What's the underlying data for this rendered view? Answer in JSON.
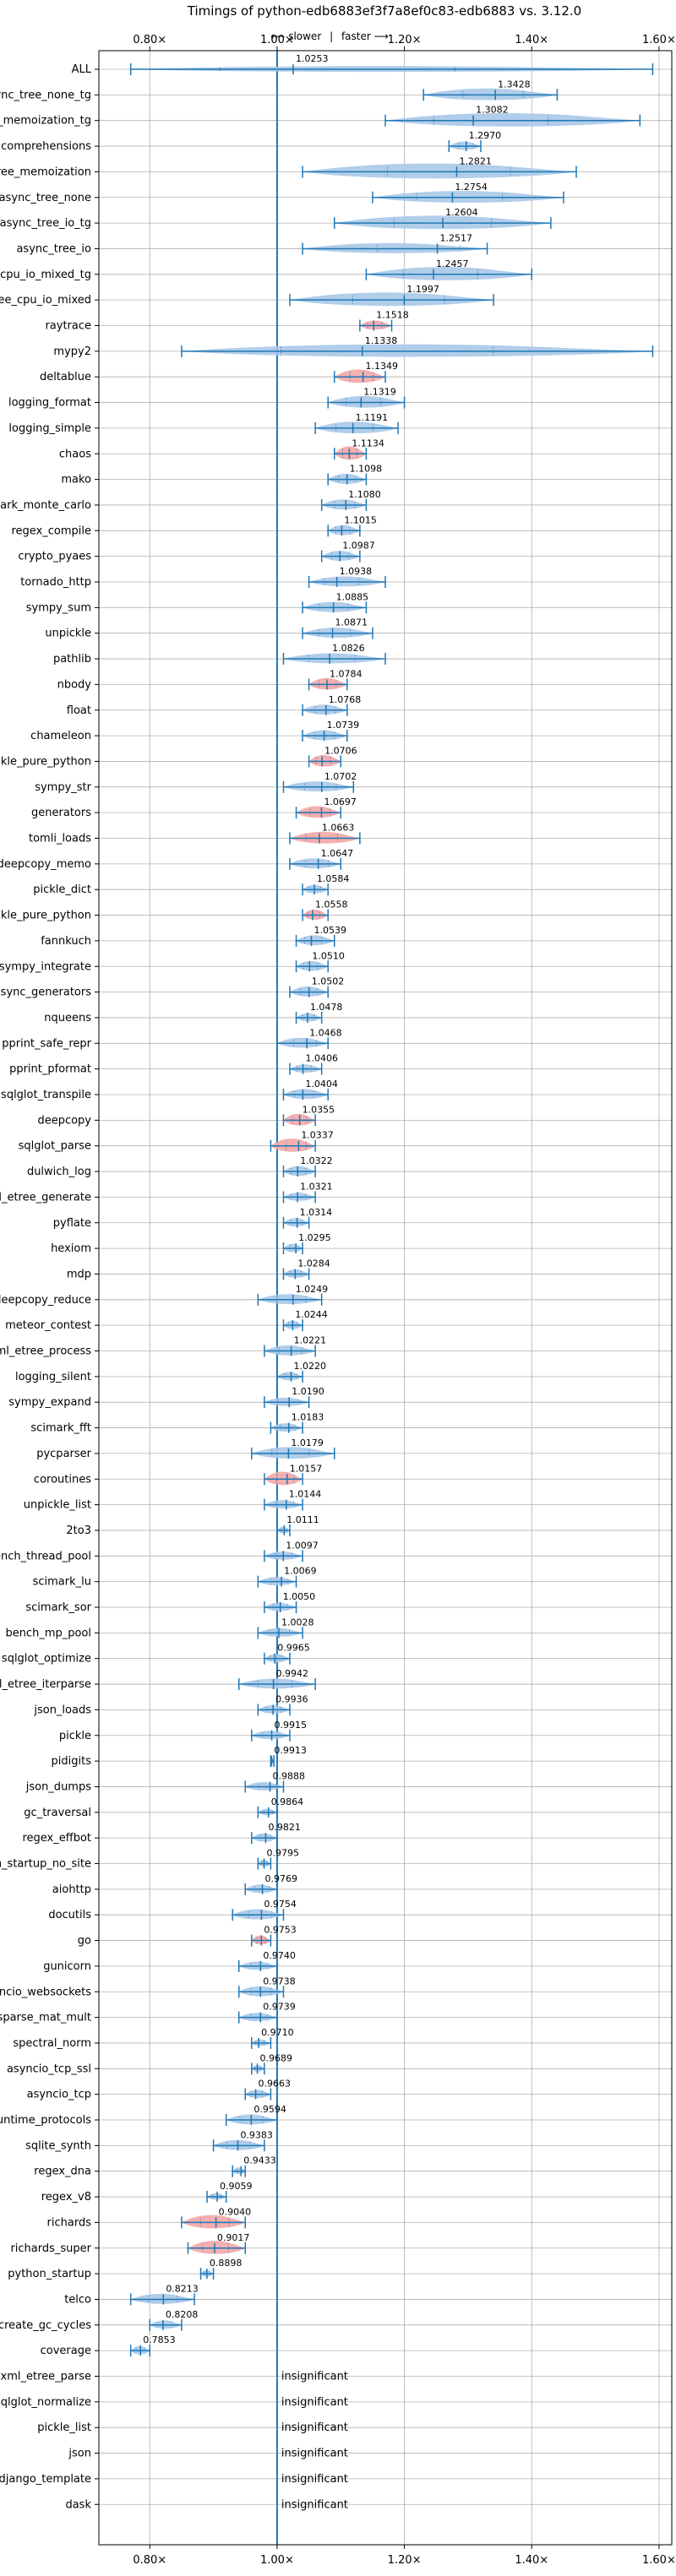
{
  "chart_data": {
    "type": "violin",
    "title": "Timings of python-edb6883ef3f7a8ef0c83-edb6883 vs. 3.12.0",
    "direction_note": {
      "slower": "⟵ slower",
      "separator": "|",
      "faster": "faster ⟶"
    },
    "xlim": [
      0.72,
      1.62
    ],
    "xticks": [
      0.8,
      1.0,
      1.2,
      1.4,
      1.6
    ],
    "xtick_labels": [
      "0.80×",
      "1.00×",
      "1.20×",
      "1.40×",
      "1.60×"
    ],
    "reference_line": 1.0,
    "insignificant_label": "insignificant",
    "colors": {
      "faster": "#a8c8e8",
      "slower": "#f4a6a6",
      "line": "#1f77b4",
      "grid": "#b0b0b0"
    },
    "rows": [
      {
        "name": "ALL",
        "value": 1.0253,
        "lo": 0.77,
        "hi": 1.59,
        "w": 0.35
      },
      {
        "name": "async_tree_none_tg",
        "value": 1.3428,
        "lo": 1.23,
        "hi": 1.44,
        "w": 0.7
      },
      {
        "name": "async_tree_memoization_tg",
        "value": 1.3082,
        "lo": 1.17,
        "hi": 1.57,
        "w": 0.8
      },
      {
        "name": "comprehensions",
        "value": 1.297,
        "lo": 1.27,
        "hi": 1.32,
        "w": 0.5
      },
      {
        "name": "async_tree_memoization",
        "value": 1.2821,
        "lo": 1.04,
        "hi": 1.47,
        "w": 0.9
      },
      {
        "name": "async_tree_none",
        "value": 1.2754,
        "lo": 1.15,
        "hi": 1.45,
        "w": 0.7
      },
      {
        "name": "async_tree_io_tg",
        "value": 1.2604,
        "lo": 1.09,
        "hi": 1.43,
        "w": 0.8
      },
      {
        "name": "async_tree_io",
        "value": 1.2517,
        "lo": 1.04,
        "hi": 1.33,
        "w": 0.6
      },
      {
        "name": "async_tree_cpu_io_mixed_tg",
        "value": 1.2457,
        "lo": 1.14,
        "hi": 1.4,
        "w": 0.8
      },
      {
        "name": "async_tree_cpu_io_mixed",
        "value": 1.1997,
        "lo": 1.02,
        "hi": 1.34,
        "w": 0.8
      },
      {
        "name": "raytrace",
        "value": 1.1518,
        "lo": 1.13,
        "hi": 1.18,
        "w": 0.55,
        "red": true
      },
      {
        "name": "mypy2",
        "value": 1.1338,
        "lo": 0.85,
        "hi": 1.59,
        "w": 0.75
      },
      {
        "name": "deltablue",
        "value": 1.1349,
        "lo": 1.09,
        "hi": 1.17,
        "w": 0.8,
        "red": true
      },
      {
        "name": "logging_format",
        "value": 1.1319,
        "lo": 1.08,
        "hi": 1.2,
        "w": 0.7
      },
      {
        "name": "logging_simple",
        "value": 1.1191,
        "lo": 1.06,
        "hi": 1.19,
        "w": 0.7
      },
      {
        "name": "chaos",
        "value": 1.1134,
        "lo": 1.09,
        "hi": 1.14,
        "w": 0.8,
        "red": true
      },
      {
        "name": "mako",
        "value": 1.1098,
        "lo": 1.08,
        "hi": 1.14,
        "w": 0.6
      },
      {
        "name": "scimark_monte_carlo",
        "value": 1.108,
        "lo": 1.07,
        "hi": 1.14,
        "w": 0.6
      },
      {
        "name": "regex_compile",
        "value": 1.1015,
        "lo": 1.08,
        "hi": 1.13,
        "w": 0.6
      },
      {
        "name": "crypto_pyaes",
        "value": 1.0987,
        "lo": 1.07,
        "hi": 1.13,
        "w": 0.6
      },
      {
        "name": "tornado_http",
        "value": 1.0938,
        "lo": 1.05,
        "hi": 1.17,
        "w": 0.6
      },
      {
        "name": "sympy_sum",
        "value": 1.0885,
        "lo": 1.04,
        "hi": 1.14,
        "w": 0.6
      },
      {
        "name": "unpickle",
        "value": 1.0871,
        "lo": 1.04,
        "hi": 1.15,
        "w": 0.6
      },
      {
        "name": "pathlib",
        "value": 1.0826,
        "lo": 1.01,
        "hi": 1.17,
        "w": 0.6
      },
      {
        "name": "nbody",
        "value": 1.0784,
        "lo": 1.05,
        "hi": 1.11,
        "w": 0.7,
        "red": true
      },
      {
        "name": "float",
        "value": 1.0768,
        "lo": 1.04,
        "hi": 1.11,
        "w": 0.6
      },
      {
        "name": "chameleon",
        "value": 1.0739,
        "lo": 1.04,
        "hi": 1.11,
        "w": 0.6
      },
      {
        "name": "pickle_pure_python",
        "value": 1.0706,
        "lo": 1.05,
        "hi": 1.1,
        "w": 0.7,
        "red": true
      },
      {
        "name": "sympy_str",
        "value": 1.0702,
        "lo": 1.01,
        "hi": 1.12,
        "w": 0.6
      },
      {
        "name": "generators",
        "value": 1.0697,
        "lo": 1.03,
        "hi": 1.1,
        "w": 0.7,
        "red": true
      },
      {
        "name": "tomli_loads",
        "value": 1.0663,
        "lo": 1.02,
        "hi": 1.13,
        "w": 0.7,
        "red": true
      },
      {
        "name": "deepcopy_memo",
        "value": 1.0647,
        "lo": 1.02,
        "hi": 1.1,
        "w": 0.6
      },
      {
        "name": "pickle_dict",
        "value": 1.0584,
        "lo": 1.04,
        "hi": 1.08,
        "w": 0.5
      },
      {
        "name": "unpickle_pure_python",
        "value": 1.0558,
        "lo": 1.04,
        "hi": 1.08,
        "w": 0.6,
        "red": true
      },
      {
        "name": "fannkuch",
        "value": 1.0539,
        "lo": 1.03,
        "hi": 1.09,
        "w": 0.6
      },
      {
        "name": "sympy_integrate",
        "value": 1.051,
        "lo": 1.03,
        "hi": 1.08,
        "w": 0.6
      },
      {
        "name": "async_generators",
        "value": 1.0502,
        "lo": 1.02,
        "hi": 1.08,
        "w": 0.6
      },
      {
        "name": "nqueens",
        "value": 1.0478,
        "lo": 1.03,
        "hi": 1.07,
        "w": 0.5
      },
      {
        "name": "pprint_safe_repr",
        "value": 1.0468,
        "lo": 1.0,
        "hi": 1.08,
        "w": 0.6
      },
      {
        "name": "pprint_pformat",
        "value": 1.0406,
        "lo": 1.02,
        "hi": 1.07,
        "w": 0.5
      },
      {
        "name": "sqlglot_transpile",
        "value": 1.0404,
        "lo": 1.01,
        "hi": 1.08,
        "w": 0.6
      },
      {
        "name": "deepcopy",
        "value": 1.0355,
        "lo": 1.01,
        "hi": 1.06,
        "w": 0.7,
        "red": true
      },
      {
        "name": "sqlglot_parse",
        "value": 1.0337,
        "lo": 0.99,
        "hi": 1.06,
        "w": 0.8,
        "red": true
      },
      {
        "name": "dulwich_log",
        "value": 1.0322,
        "lo": 1.01,
        "hi": 1.06,
        "w": 0.6
      },
      {
        "name": "xml_etree_generate",
        "value": 1.0321,
        "lo": 1.01,
        "hi": 1.06,
        "w": 0.5
      },
      {
        "name": "pyflate",
        "value": 1.0314,
        "lo": 1.01,
        "hi": 1.05,
        "w": 0.5
      },
      {
        "name": "hexiom",
        "value": 1.0295,
        "lo": 1.01,
        "hi": 1.04,
        "w": 0.5
      },
      {
        "name": "mdp",
        "value": 1.0284,
        "lo": 1.01,
        "hi": 1.05,
        "w": 0.5
      },
      {
        "name": "deepcopy_reduce",
        "value": 1.0249,
        "lo": 0.97,
        "hi": 1.07,
        "w": 0.6
      },
      {
        "name": "meteor_contest",
        "value": 1.0244,
        "lo": 1.01,
        "hi": 1.04,
        "w": 0.5
      },
      {
        "name": "xml_etree_process",
        "value": 1.0221,
        "lo": 0.98,
        "hi": 1.06,
        "w": 0.6
      },
      {
        "name": "logging_silent",
        "value": 1.022,
        "lo": 1.0,
        "hi": 1.04,
        "w": 0.5
      },
      {
        "name": "sympy_expand",
        "value": 1.019,
        "lo": 0.98,
        "hi": 1.05,
        "w": 0.5
      },
      {
        "name": "scimark_fft",
        "value": 1.0183,
        "lo": 0.99,
        "hi": 1.04,
        "w": 0.5
      },
      {
        "name": "pycparser",
        "value": 1.0179,
        "lo": 0.96,
        "hi": 1.09,
        "w": 0.7
      },
      {
        "name": "coroutines",
        "value": 1.0157,
        "lo": 0.98,
        "hi": 1.04,
        "w": 0.8,
        "red": true
      },
      {
        "name": "unpickle_list",
        "value": 1.0144,
        "lo": 0.98,
        "hi": 1.04,
        "w": 0.5
      },
      {
        "name": "2to3",
        "value": 1.0111,
        "lo": 1.0,
        "hi": 1.02,
        "w": 0.4
      },
      {
        "name": "bench_thread_pool",
        "value": 1.0097,
        "lo": 0.98,
        "hi": 1.04,
        "w": 0.5
      },
      {
        "name": "scimark_lu",
        "value": 1.0069,
        "lo": 0.97,
        "hi": 1.03,
        "w": 0.5
      },
      {
        "name": "scimark_sor",
        "value": 1.005,
        "lo": 0.98,
        "hi": 1.03,
        "w": 0.5
      },
      {
        "name": "bench_mp_pool",
        "value": 1.0028,
        "lo": 0.97,
        "hi": 1.04,
        "w": 0.5
      },
      {
        "name": "sqlglot_optimize",
        "value": 0.9965,
        "lo": 0.98,
        "hi": 1.02,
        "w": 0.5
      },
      {
        "name": "xml_etree_iterparse",
        "value": 0.9942,
        "lo": 0.94,
        "hi": 1.06,
        "w": 0.6
      },
      {
        "name": "json_loads",
        "value": 0.9936,
        "lo": 0.97,
        "hi": 1.02,
        "w": 0.5
      },
      {
        "name": "pickle",
        "value": 0.9915,
        "lo": 0.96,
        "hi": 1.02,
        "w": 0.5
      },
      {
        "name": "pidigits",
        "value": 0.9913,
        "lo": 0.99,
        "hi": 0.995,
        "w": 0.35
      },
      {
        "name": "json_dumps",
        "value": 0.9888,
        "lo": 0.95,
        "hi": 1.01,
        "w": 0.5
      },
      {
        "name": "gc_traversal",
        "value": 0.9864,
        "lo": 0.97,
        "hi": 1.0,
        "w": 0.4
      },
      {
        "name": "regex_effbot",
        "value": 0.9821,
        "lo": 0.96,
        "hi": 1.0,
        "w": 0.5
      },
      {
        "name": "python_startup_no_site",
        "value": 0.9795,
        "lo": 0.97,
        "hi": 0.99,
        "w": 0.4
      },
      {
        "name": "aiohttp",
        "value": 0.9769,
        "lo": 0.95,
        "hi": 1.0,
        "w": 0.5
      },
      {
        "name": "docutils",
        "value": 0.9754,
        "lo": 0.93,
        "hi": 1.01,
        "w": 0.6
      },
      {
        "name": "go",
        "value": 0.9753,
        "lo": 0.96,
        "hi": 0.99,
        "w": 0.55,
        "red": true
      },
      {
        "name": "gunicorn",
        "value": 0.974,
        "lo": 0.94,
        "hi": 1.0,
        "w": 0.5
      },
      {
        "name": "asyncio_websockets",
        "value": 0.9738,
        "lo": 0.94,
        "hi": 1.01,
        "w": 0.6
      },
      {
        "name": "scimark_sparse_mat_mult",
        "value": 0.9739,
        "lo": 0.94,
        "hi": 1.0,
        "w": 0.5
      },
      {
        "name": "spectral_norm",
        "value": 0.971,
        "lo": 0.96,
        "hi": 0.99,
        "w": 0.4
      },
      {
        "name": "asyncio_tcp_ssl",
        "value": 0.9689,
        "lo": 0.96,
        "hi": 0.98,
        "w": 0.4
      },
      {
        "name": "asyncio_tcp",
        "value": 0.9663,
        "lo": 0.95,
        "hi": 0.99,
        "w": 0.5
      },
      {
        "name": "typing_runtime_protocols",
        "value": 0.9594,
        "lo": 0.92,
        "hi": 1.0,
        "w": 0.6
      },
      {
        "name": "sqlite_synth",
        "value": 0.9383,
        "lo": 0.9,
        "hi": 0.98,
        "w": 0.6
      },
      {
        "name": "regex_dna",
        "value": 0.9433,
        "lo": 0.93,
        "hi": 0.95,
        "w": 0.4
      },
      {
        "name": "regex_v8",
        "value": 0.9059,
        "lo": 0.89,
        "hi": 0.92,
        "w": 0.4
      },
      {
        "name": "richards",
        "value": 0.904,
        "lo": 0.85,
        "hi": 0.95,
        "w": 0.8,
        "red": true
      },
      {
        "name": "richards_super",
        "value": 0.9017,
        "lo": 0.86,
        "hi": 0.95,
        "w": 0.8,
        "red": true
      },
      {
        "name": "python_startup",
        "value": 0.8898,
        "lo": 0.88,
        "hi": 0.9,
        "w": 0.4
      },
      {
        "name": "telco",
        "value": 0.8213,
        "lo": 0.77,
        "hi": 0.87,
        "w": 0.6
      },
      {
        "name": "create_gc_cycles",
        "value": 0.8208,
        "lo": 0.8,
        "hi": 0.85,
        "w": 0.5
      },
      {
        "name": "coverage",
        "value": 0.7853,
        "lo": 0.77,
        "hi": 0.8,
        "w": 0.5
      },
      {
        "name": "xml_etree_parse",
        "insignificant": true
      },
      {
        "name": "sqlglot_normalize",
        "insignificant": true
      },
      {
        "name": "pickle_list",
        "insignificant": true
      },
      {
        "name": "json",
        "insignificant": true
      },
      {
        "name": "django_template",
        "insignificant": true
      },
      {
        "name": "dask",
        "insignificant": true
      }
    ]
  }
}
